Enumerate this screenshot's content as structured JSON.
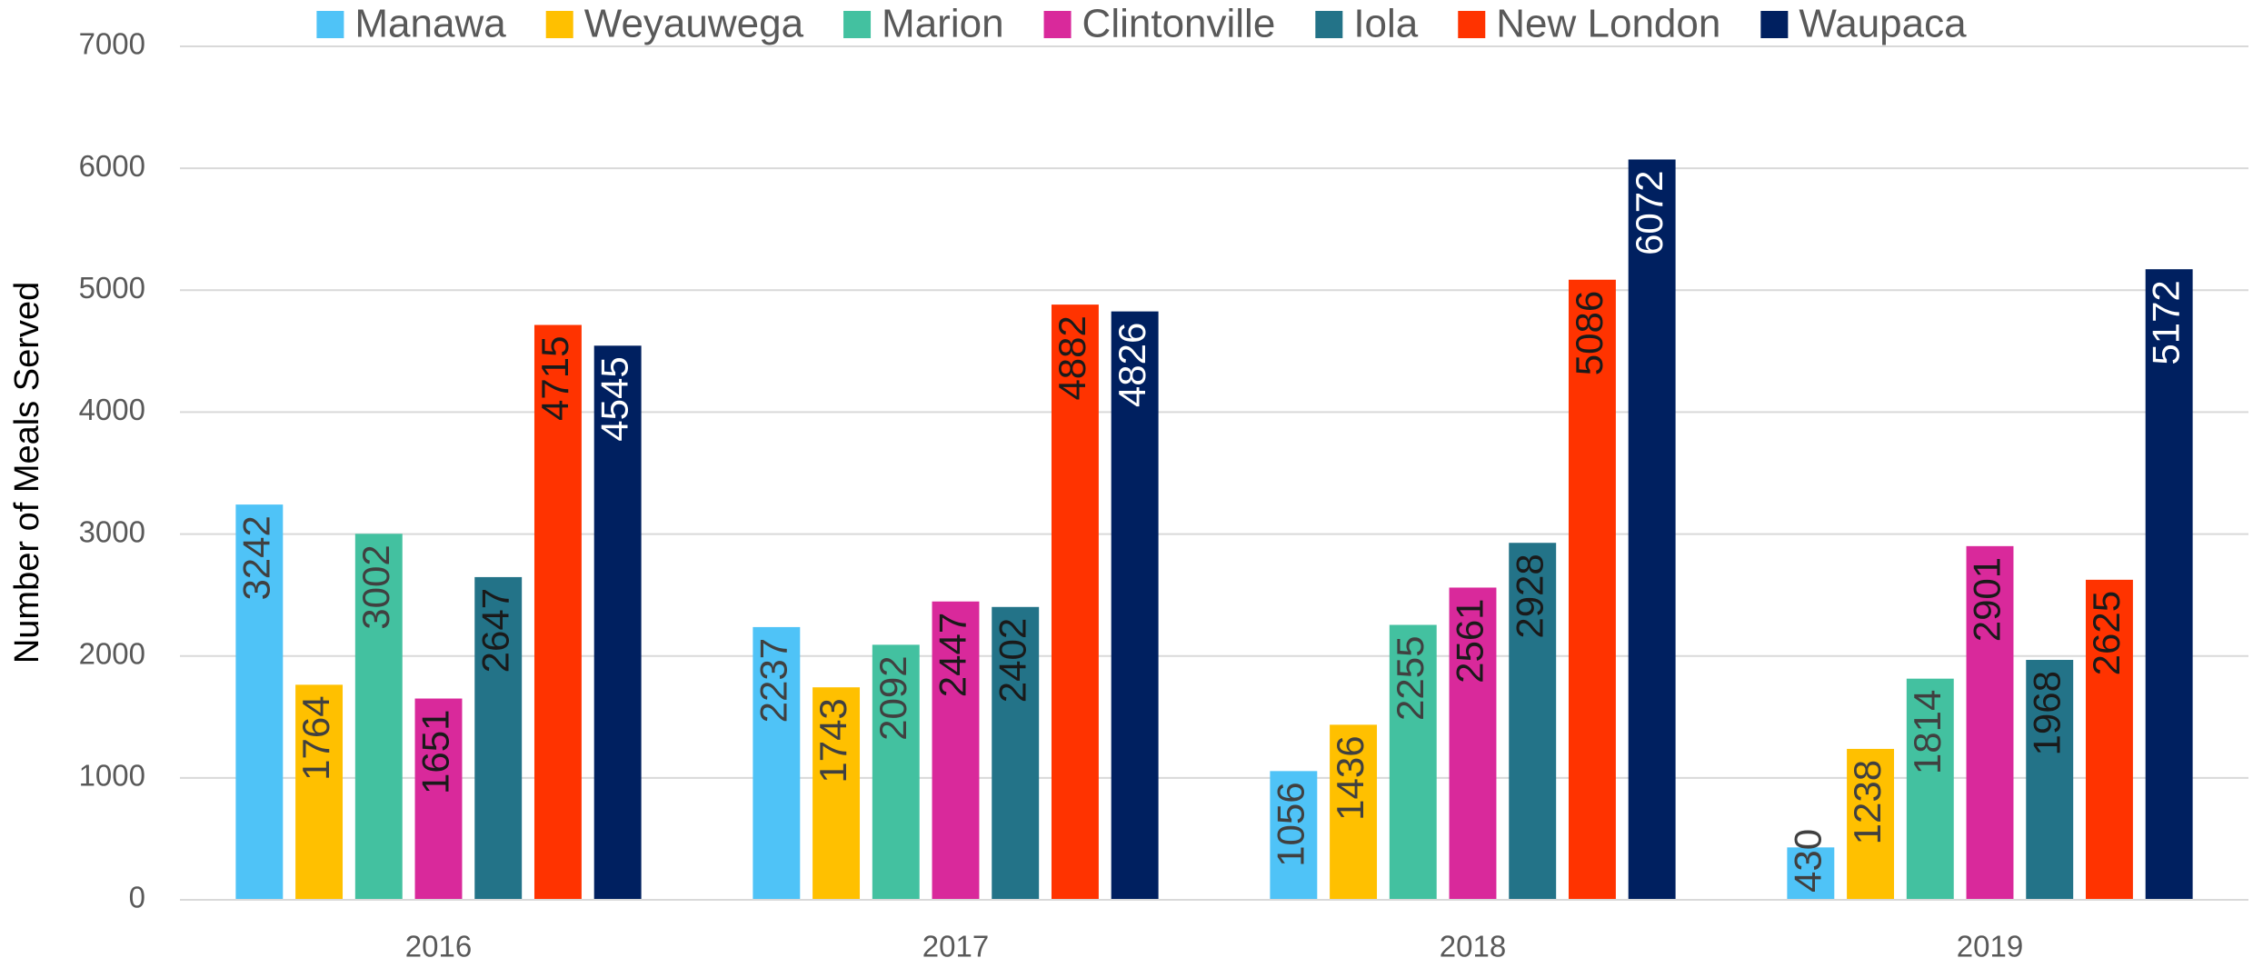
{
  "chart_data": {
    "type": "bar",
    "ylabel": "Number of Meals Served",
    "categories": [
      "2016",
      "2017",
      "2018",
      "2019"
    ],
    "series": [
      {
        "name": "Manawa",
        "color": "#4fc3f7",
        "values": [
          3242,
          2237,
          1056,
          430
        ]
      },
      {
        "name": "Weyauwega",
        "color": "#ffc000",
        "values": [
          1764,
          1743,
          1436,
          1238
        ]
      },
      {
        "name": "Marion",
        "color": "#43c1a0",
        "values": [
          3002,
          2092,
          2255,
          1814
        ]
      },
      {
        "name": "Clintonville",
        "color": "#d9299b",
        "values": [
          1651,
          2447,
          2561,
          2901
        ]
      },
      {
        "name": "Iola",
        "color": "#237388",
        "values": [
          2647,
          2402,
          2928,
          1968
        ]
      },
      {
        "name": "New London",
        "color": "#ff3300",
        "values": [
          4715,
          4882,
          5086,
          2625
        ]
      },
      {
        "name": "Waupaca",
        "color": "#002060",
        "values": [
          4545,
          4826,
          6072,
          5172
        ]
      }
    ],
    "ylim": [
      0,
      7000
    ],
    "yticks": [
      0,
      1000,
      2000,
      3000,
      4000,
      5000,
      6000,
      7000
    ],
    "grid": true,
    "legend": "top"
  }
}
